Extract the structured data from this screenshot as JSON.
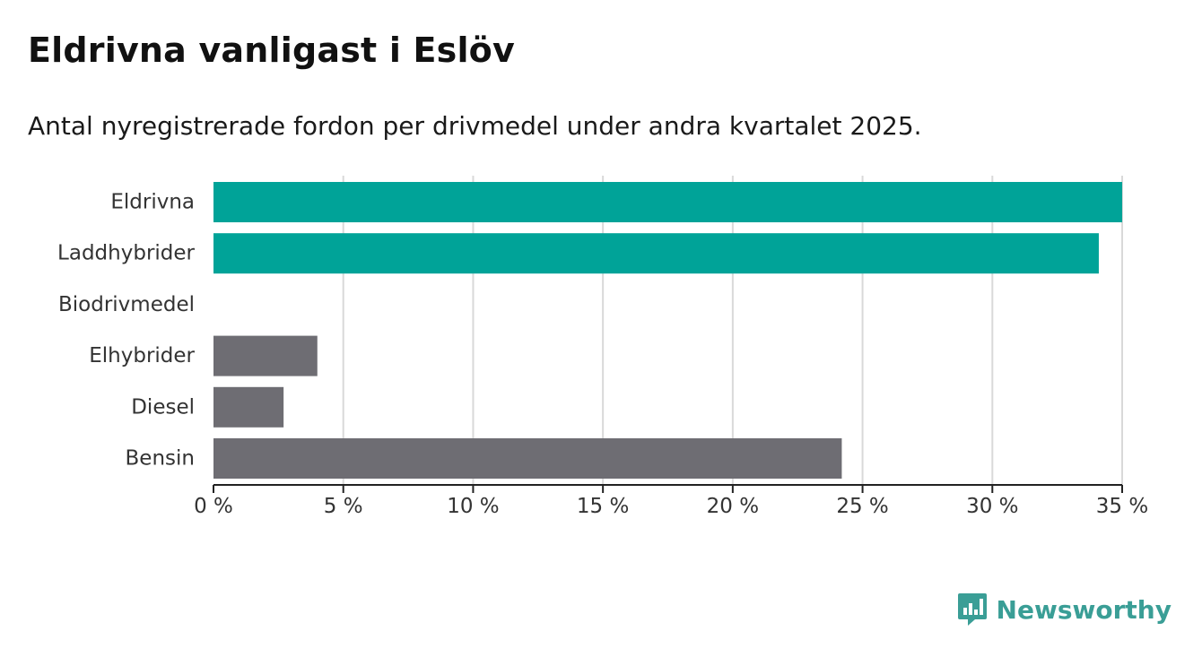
{
  "title": "Eldrivna vanligast i Eslöv",
  "subtitle": "Antal nyregistrerade fordon per drivmedel under andra kvartalet 2025.",
  "brand": {
    "name": "Newsworthy",
    "icon": "newsworthy-logo-icon"
  },
  "colors": {
    "highlight": "#00a398",
    "other": "#6e6d73",
    "grid": "#d9d9d9",
    "axis": "#222222"
  },
  "chart_data": {
    "type": "bar",
    "orientation": "horizontal",
    "categories": [
      "Eldrivna",
      "Laddhybrider",
      "Biodrivmedel",
      "Elhybrider",
      "Diesel",
      "Bensin"
    ],
    "values": [
      35.0,
      34.1,
      0,
      4.0,
      2.7,
      24.2
    ],
    "highlighted": [
      true,
      true,
      false,
      false,
      false,
      false
    ],
    "x_ticks": [
      "0 %",
      "5 %",
      "10 %",
      "15 %",
      "20 %",
      "25 %",
      "30 %",
      "35 %"
    ],
    "xlim": [
      0,
      35
    ],
    "grid": true
  }
}
